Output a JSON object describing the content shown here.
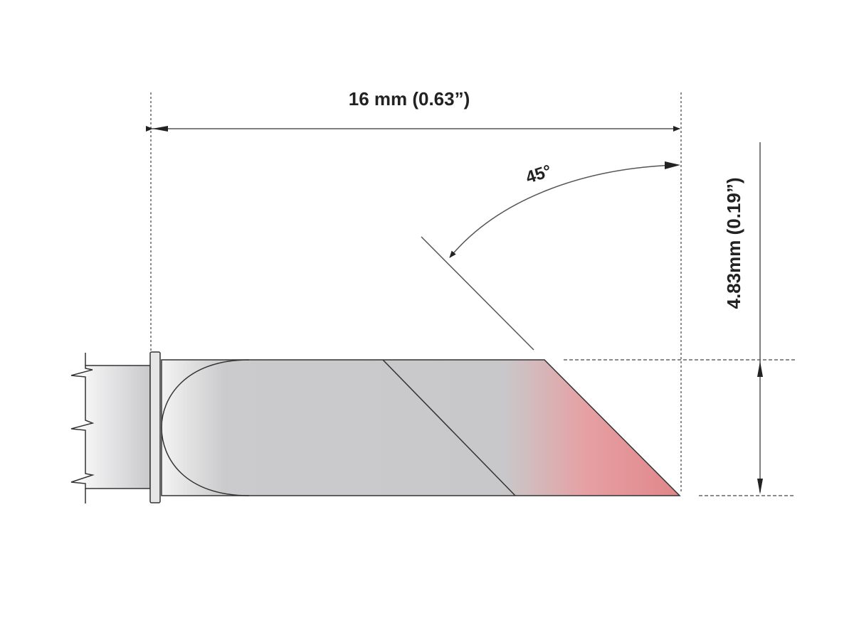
{
  "dimensions": {
    "length_label": "16 mm (0.63”)",
    "angle_label": "45°",
    "height_label": "4.83mm (0.19”)"
  },
  "colors": {
    "body": "#c8c8ca",
    "tip_accent": "#e0868a",
    "line": "#333333",
    "dim_line": "#555555"
  }
}
